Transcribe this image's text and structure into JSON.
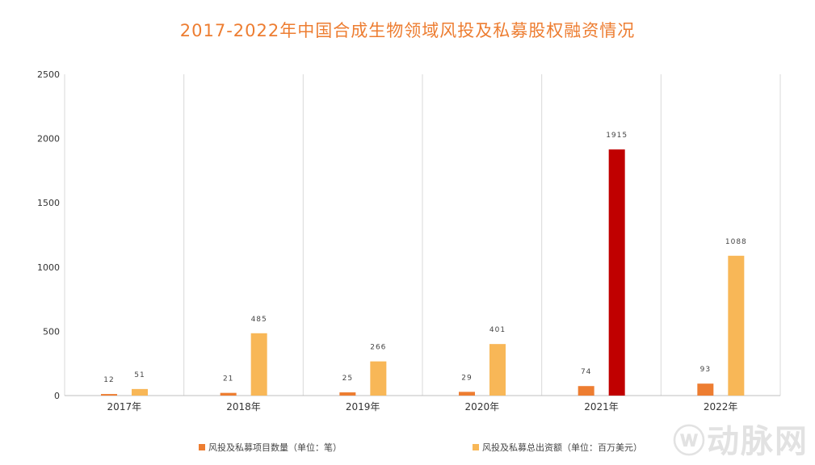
{
  "chart_data": {
    "type": "bar",
    "title": "2017-2022年中国合成生物领域风投及私募股权融资情况",
    "categories": [
      "2017年",
      "2018年",
      "2019年",
      "2020年",
      "2021年",
      "2022年"
    ],
    "series": [
      {
        "name": "风投及私募项目数量（单位：笔）",
        "values": [
          12,
          21,
          25,
          29,
          74,
          93
        ],
        "color": "#ED7D31"
      },
      {
        "name": "风投及私募总出资额（单位：百万美元）",
        "values": [
          51,
          485,
          266,
          401,
          1915,
          1088
        ],
        "color": "#F8B757",
        "highlight": {
          "index": 4,
          "color": "#C00000"
        }
      }
    ],
    "ylim": [
      0,
      2500
    ],
    "yticks": [
      0,
      500,
      1000,
      1500,
      2000,
      2500
    ],
    "grid": "vertical category separators",
    "legend": "bottom"
  },
  "watermark": "动脉网"
}
